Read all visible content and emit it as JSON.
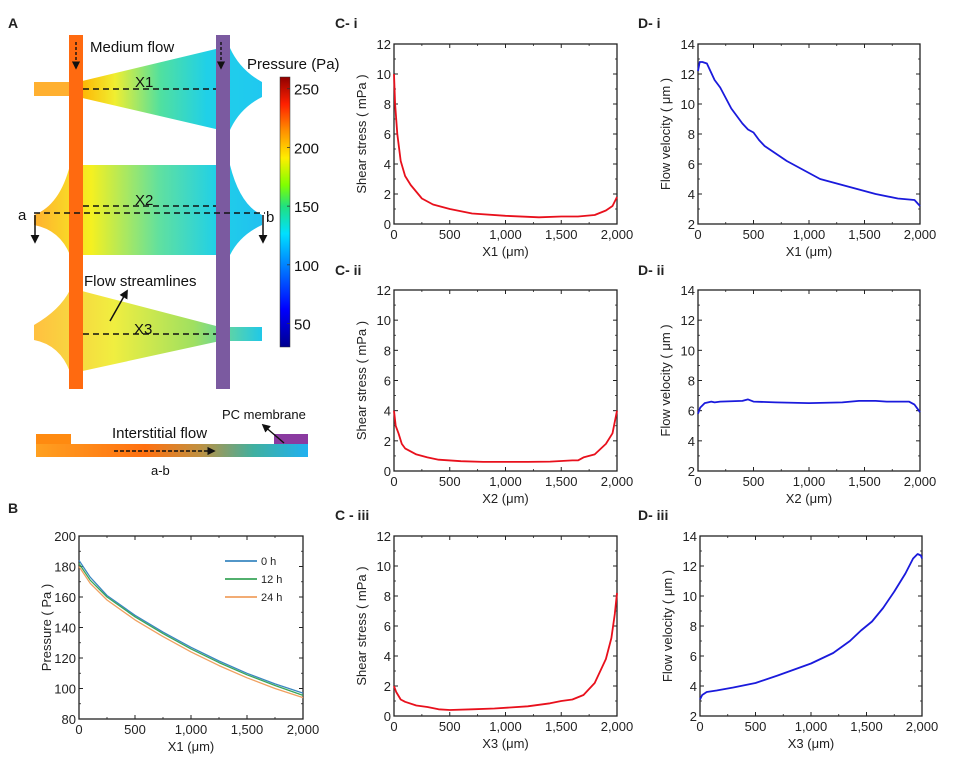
{
  "panel_labels": {
    "A": "A",
    "B": "B",
    "Ci": "C- i",
    "Cii": "C- ii",
    "Ciii": "C - iii",
    "Di": "D- i",
    "Dii": "D- ii",
    "Diii": "D- iii"
  },
  "diagram": {
    "medium_flow": "Medium flow",
    "pressure_title": "Pressure (Pa)",
    "x1": "X1",
    "x2": "X2",
    "x3": "X3",
    "a": "a",
    "b": "b",
    "flow_streamlines": "Flow streamlines",
    "interstitial_flow": "Interstitial flow",
    "pc_membrane": "PC membrane",
    "section": "a-b",
    "colorbar_ticks": [
      "250",
      "200",
      "150",
      "100",
      "50"
    ],
    "colorbar_range": [
      30,
      260
    ]
  },
  "chart_data": [
    {
      "id": "B",
      "type": "line",
      "xlabel": "X1 (μm)",
      "ylabel": "Pressure ( Pa )",
      "xlim": [
        0,
        2000
      ],
      "ylim": [
        80,
        200
      ],
      "xticks": [
        "0",
        "500",
        "1,000",
        "1,500",
        "2,000"
      ],
      "yticks": [
        "80",
        "100",
        "120",
        "140",
        "160",
        "180",
        "200"
      ],
      "legend_position": "top-right",
      "series": [
        {
          "name": "0 h",
          "color": "#3a87c0",
          "x": [
            0,
            100,
            250,
            500,
            750,
            1000,
            1250,
            1500,
            1750,
            2000
          ],
          "y": [
            184,
            173,
            161,
            148,
            137,
            127,
            118,
            110,
            103,
            97
          ]
        },
        {
          "name": "12 h",
          "color": "#3aa55a",
          "x": [
            0,
            100,
            250,
            500,
            750,
            1000,
            1250,
            1500,
            1750,
            2000
          ],
          "y": [
            182,
            171,
            160,
            147,
            136,
            126,
            117,
            109,
            102,
            95.5
          ]
        },
        {
          "name": "24 h",
          "color": "#f0a060",
          "x": [
            0,
            100,
            250,
            500,
            750,
            1000,
            1250,
            1500,
            1750,
            2000
          ],
          "y": [
            180,
            169,
            158,
            145,
            134,
            124,
            115,
            107,
            100,
            94
          ]
        }
      ]
    },
    {
      "id": "Ci",
      "type": "line",
      "xlabel": "X1 (μm)",
      "ylabel": "Shear stress ( mPa )",
      "xlim": [
        0,
        2000
      ],
      "ylim": [
        0,
        12
      ],
      "xticks": [
        "0",
        "500",
        "1,000",
        "1,500",
        "2,000"
      ],
      "yticks": [
        "0",
        "2",
        "4",
        "6",
        "8",
        "10",
        "12"
      ],
      "series": [
        {
          "name": "shear X1",
          "color": "#e8101c",
          "x": [
            0,
            10,
            30,
            60,
            100,
            150,
            250,
            350,
            500,
            700,
            1000,
            1300,
            1500,
            1650,
            1800,
            1900,
            1960,
            2000
          ],
          "y": [
            10,
            8,
            6,
            4.2,
            3.2,
            2.6,
            1.7,
            1.3,
            1.0,
            0.7,
            0.55,
            0.45,
            0.5,
            0.5,
            0.6,
            0.9,
            1.2,
            1.8
          ]
        }
      ]
    },
    {
      "id": "Di",
      "type": "line",
      "xlabel": "X1 (μm)",
      "ylabel": "Flow velocity ( μm )",
      "xlim": [
        0,
        2000
      ],
      "ylim": [
        2,
        14
      ],
      "xticks": [
        "0",
        "500",
        "1,000",
        "1,500",
        "2,000"
      ],
      "yticks": [
        "2",
        "4",
        "6",
        "8",
        "10",
        "12",
        "14"
      ],
      "series": [
        {
          "name": "velocity X1",
          "color": "#1a1adc",
          "x": [
            0,
            15,
            40,
            80,
            150,
            200,
            300,
            400,
            450,
            500,
            550,
            600,
            700,
            800,
            1000,
            1100,
            1200,
            1400,
            1600,
            1800,
            1950,
            2000
          ],
          "y": [
            12.2,
            12.8,
            12.8,
            12.7,
            11.6,
            11.1,
            9.7,
            8.7,
            8.3,
            8.1,
            7.6,
            7.2,
            6.7,
            6.2,
            5.4,
            5.0,
            4.8,
            4.4,
            4.0,
            3.7,
            3.6,
            3.2
          ]
        }
      ]
    },
    {
      "id": "Cii",
      "type": "line",
      "xlabel": "X2 (μm)",
      "ylabel": "Shear stress ( mPa )",
      "xlim": [
        0,
        2000
      ],
      "ylim": [
        0,
        12
      ],
      "xticks": [
        "0",
        "500",
        "1,000",
        "1,500",
        "2,000"
      ],
      "yticks": [
        "0",
        "2",
        "4",
        "6",
        "8",
        "10",
        "12"
      ],
      "series": [
        {
          "name": "shear X2",
          "color": "#e8101c",
          "x": [
            0,
            15,
            40,
            70,
            100,
            200,
            300,
            400,
            600,
            800,
            1000,
            1200,
            1400,
            1600,
            1650,
            1700,
            1800,
            1900,
            1960,
            2000
          ],
          "y": [
            4.0,
            3.0,
            2.5,
            1.8,
            1.5,
            1.1,
            0.9,
            0.75,
            0.65,
            0.6,
            0.6,
            0.6,
            0.62,
            0.7,
            0.7,
            0.9,
            1.1,
            1.8,
            2.5,
            4.0
          ]
        }
      ]
    },
    {
      "id": "Dii",
      "type": "line",
      "xlabel": "X2 (μm)",
      "ylabel": "Flow velocity ( μm )",
      "xlim": [
        0,
        2000
      ],
      "ylim": [
        2,
        14
      ],
      "xticks": [
        "0",
        "500",
        "1,000",
        "1,500",
        "2,000"
      ],
      "yticks": [
        "2",
        "4",
        "6",
        "8",
        "10",
        "12",
        "14"
      ],
      "series": [
        {
          "name": "velocity X2",
          "color": "#1a1adc",
          "x": [
            0,
            20,
            60,
            120,
            150,
            200,
            400,
            450,
            500,
            700,
            1000,
            1300,
            1450,
            1600,
            1700,
            1900,
            1950,
            2000
          ],
          "y": [
            5.8,
            6.2,
            6.5,
            6.6,
            6.55,
            6.6,
            6.65,
            6.75,
            6.6,
            6.55,
            6.5,
            6.55,
            6.65,
            6.65,
            6.6,
            6.6,
            6.4,
            5.9
          ]
        }
      ]
    },
    {
      "id": "Ciii",
      "type": "line",
      "xlabel": "X3 (μm)",
      "ylabel": "Shear stress ( mPa )",
      "xlim": [
        0,
        2000
      ],
      "ylim": [
        0,
        12
      ],
      "xticks": [
        "0",
        "500",
        "1,000",
        "1,500",
        "2,000"
      ],
      "yticks": [
        "0",
        "2",
        "4",
        "6",
        "8",
        "10",
        "12"
      ],
      "series": [
        {
          "name": "shear X3",
          "color": "#e8101c",
          "x": [
            0,
            20,
            60,
            100,
            200,
            300,
            400,
            500,
            700,
            900,
            1200,
            1400,
            1500,
            1600,
            1700,
            1800,
            1900,
            1950,
            1980,
            2000
          ],
          "y": [
            2.0,
            1.6,
            1.1,
            0.95,
            0.7,
            0.6,
            0.45,
            0.4,
            0.45,
            0.5,
            0.65,
            0.85,
            1.0,
            1.1,
            1.4,
            2.2,
            3.8,
            5.2,
            6.8,
            8.2
          ]
        }
      ]
    },
    {
      "id": "Diii",
      "type": "line",
      "xlabel": "X3 (μm)",
      "ylabel": "Flow velocity ( μm )",
      "xlim": [
        0,
        2000
      ],
      "ylim": [
        2,
        14
      ],
      "xticks": [
        "0",
        "500",
        "1,000",
        "1,500",
        "2,000"
      ],
      "yticks": [
        "2",
        "4",
        "6",
        "8",
        "10",
        "12",
        "14"
      ],
      "series": [
        {
          "name": "velocity X3",
          "color": "#1a1adc",
          "x": [
            0,
            20,
            60,
            150,
            300,
            500,
            700,
            1000,
            1200,
            1350,
            1450,
            1550,
            1650,
            1750,
            1850,
            1920,
            1960,
            1990,
            2000
          ],
          "y": [
            3.1,
            3.4,
            3.6,
            3.7,
            3.9,
            4.2,
            4.7,
            5.5,
            6.2,
            7.0,
            7.7,
            8.3,
            9.2,
            10.3,
            11.5,
            12.5,
            12.8,
            12.7,
            12.5
          ]
        }
      ]
    }
  ]
}
